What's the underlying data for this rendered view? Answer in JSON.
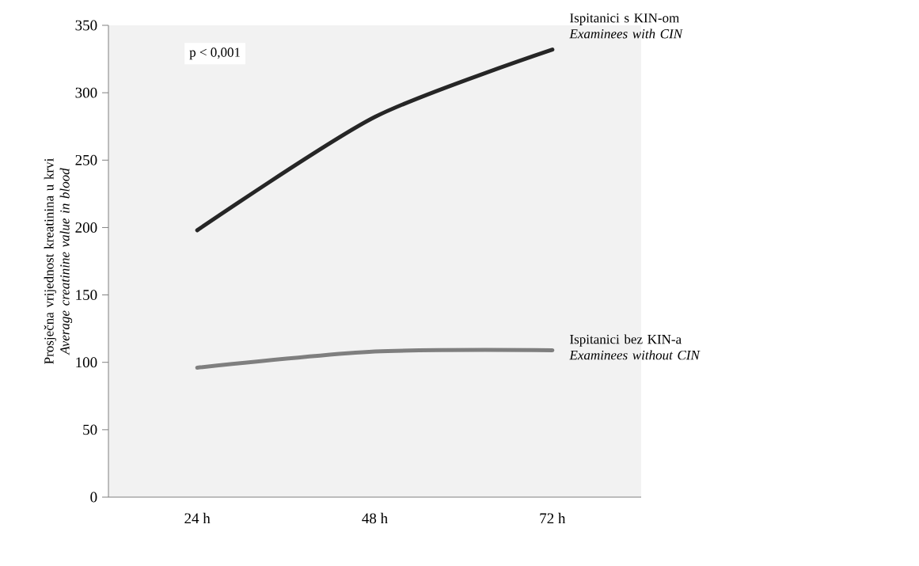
{
  "chart_data": {
    "type": "line",
    "ylabel": "Prosječna vrijednost kreatinina u krvi *Average creatinine value in blood*",
    "categories": [
      "24 h",
      "48 h",
      "72 h"
    ],
    "series": [
      {
        "name": "Ispitanici s KIN-om *Examinees with CIN*",
        "color": "#262626",
        "values": [
          198,
          282,
          332
        ]
      },
      {
        "name": "Ispitanici bez KIN-a *Examinees without CIN*",
        "color": "#7f7f7f",
        "values": [
          96,
          108,
          109
        ]
      }
    ],
    "ylim": [
      0,
      350
    ],
    "yticks": [
      0,
      50,
      100,
      150,
      200,
      250,
      300,
      350
    ],
    "grid": false,
    "legend": false,
    "marker": "none",
    "line_style": "solid",
    "annotations": [
      "p < 0,001"
    ]
  }
}
